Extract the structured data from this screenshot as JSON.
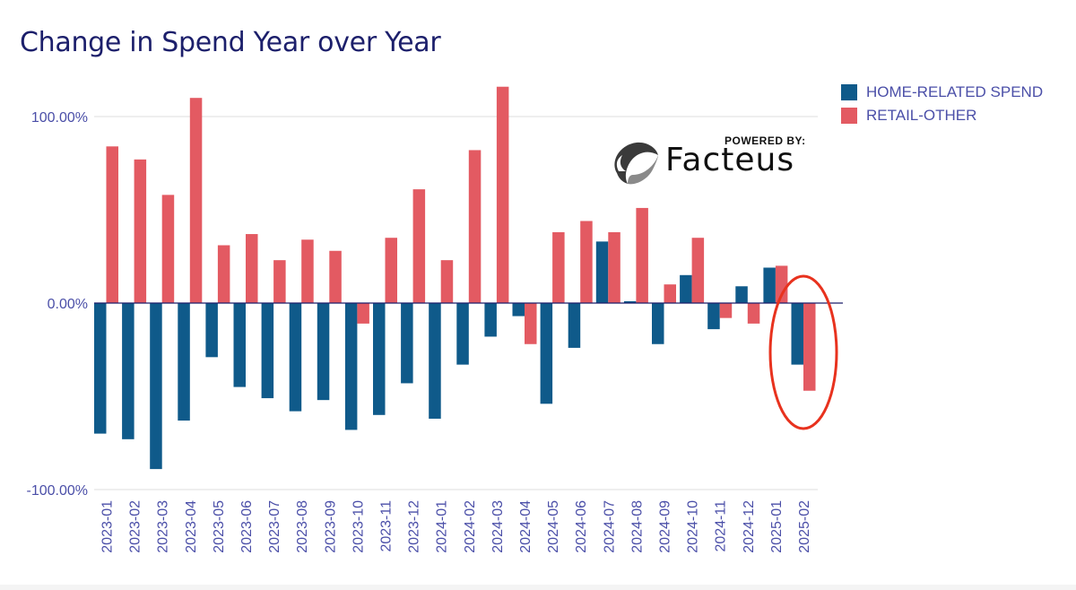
{
  "chart_data": {
    "type": "bar",
    "title": "Change in Spend Year over Year",
    "categories": [
      "2023-01",
      "2023-02",
      "2023-03",
      "2023-04",
      "2023-05",
      "2023-06",
      "2023-07",
      "2023-08",
      "2023-09",
      "2023-10",
      "2023-11",
      "2023-12",
      "2024-01",
      "2024-02",
      "2024-03",
      "2024-04",
      "2024-05",
      "2024-06",
      "2024-07",
      "2024-08",
      "2024-09",
      "2024-10",
      "2024-11",
      "2024-12",
      "2025-01",
      "2025-02"
    ],
    "series": [
      {
        "name": "HOME-RELATED SPEND",
        "color": "#0f5a8a",
        "values": [
          -70,
          -73,
          -89,
          -63,
          -29,
          -45,
          -51,
          -58,
          -52,
          -68,
          -60,
          -43,
          -62,
          -33,
          -18,
          -7,
          -54,
          -24,
          33,
          1,
          -22,
          15,
          -14,
          9,
          19,
          -33
        ]
      },
      {
        "name": "RETAIL-OTHER",
        "color": "#e35a62",
        "values": [
          84,
          77,
          58,
          110,
          31,
          37,
          23,
          34,
          28,
          -11,
          35,
          61,
          23,
          82,
          116,
          -22,
          38,
          44,
          38,
          51,
          10,
          35,
          -8,
          -11,
          20,
          -47
        ]
      }
    ],
    "yticks": [
      "100.00%",
      "0.00%",
      "-100.00%"
    ],
    "ytick_values": [
      100,
      0,
      -100
    ],
    "ylim": [
      -100,
      125
    ],
    "grid": true,
    "legend_position": "top-right",
    "highlight": {
      "category": "2025-02",
      "color": "#e8321e"
    }
  },
  "branding": {
    "powered_label": "POWERED BY:",
    "name": "Facteus"
  }
}
